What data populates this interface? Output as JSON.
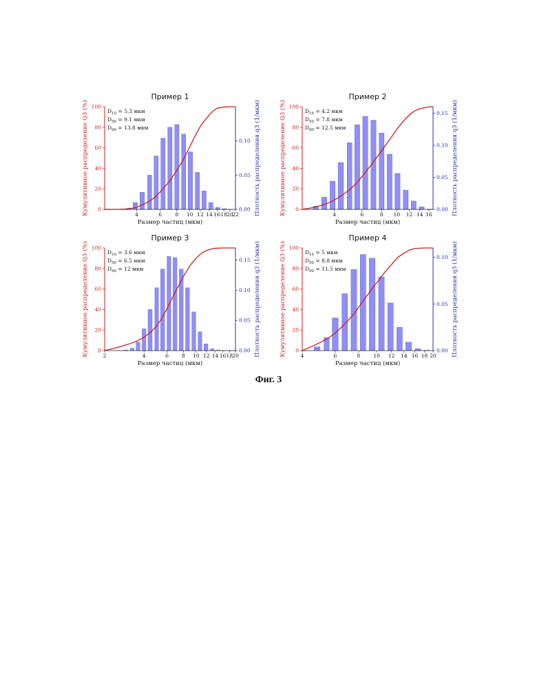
{
  "figure_caption": "Фиг. 3",
  "colors": {
    "cumulative": "#c81e1e",
    "density_bar": "#8f8ff5",
    "density_bar_stroke": "#5555d0",
    "density_axis": "#2b2ba8"
  },
  "chart_data": [
    {
      "type": "bar",
      "title": "Пример 1",
      "xlabel": "Размер частиц (мкм)",
      "ylabel_left": "Кумулятивное распределение Q3 (%)",
      "ylabel_right": "Плотность распределения q3 (1/мкм)",
      "stats": [
        {
          "pre": "D",
          "sub": "10",
          "post": " = 5.3 мкм"
        },
        {
          "pre": "D",
          "sub": "50",
          "post": " = 9.1 мкм"
        },
        {
          "pre": "D",
          "sub": "90",
          "post": " = 13.8 мкм"
        }
      ],
      "left_ticks": [
        "0",
        "20",
        "40",
        "60",
        "80",
        "100"
      ],
      "left_ylim": [
        0,
        100
      ],
      "right_ticks": [
        "0.00",
        "0.05",
        "0.10"
      ],
      "right_tick_values": [
        0,
        0.05,
        0.1
      ],
      "right_ylim": [
        0,
        0.15
      ],
      "x_tick_labels": [
        "4",
        "6",
        "8",
        "10",
        "12",
        "14",
        "16",
        "18",
        "20",
        "22"
      ],
      "x_tick_values": [
        4,
        6,
        8,
        10,
        12,
        14,
        16,
        18,
        20,
        22
      ],
      "x_scale": "log",
      "xlim": [
        2.3,
        22
      ],
      "bars": {
        "x": [
          3.5,
          3.9,
          4.4,
          5.0,
          5.6,
          6.3,
          7.1,
          8.0,
          9.0,
          10.1,
          11.4,
          12.8,
          14.4,
          16.2,
          18.2,
          20.5
        ],
        "values": [
          0.002,
          0.01,
          0.025,
          0.05,
          0.078,
          0.104,
          0.12,
          0.124,
          0.11,
          0.084,
          0.054,
          0.027,
          0.01,
          0.003,
          0.001,
          0.0003
        ]
      },
      "cumulative": {
        "x": [
          2.3,
          3.0,
          3.5,
          4.0,
          4.5,
          5.0,
          5.5,
          6.0,
          7.0,
          8.0,
          9.0,
          10.0,
          11.0,
          12.0,
          13.0,
          14.0,
          15.0,
          16.0,
          18.0,
          20.0,
          22.0
        ],
        "values": [
          0,
          0.1,
          0.5,
          2,
          5,
          8,
          12,
          17,
          27,
          38,
          49,
          61,
          72,
          81,
          87,
          92,
          96,
          98.5,
          99.7,
          100,
          100
        ]
      }
    },
    {
      "type": "bar",
      "title": "Пример 2",
      "xlabel": "Размер частиц (мкм)",
      "ylabel_left": "Кумулятивное распределение Q3 (%)",
      "ylabel_right": "Плотность распределения q3 (1/мкм)",
      "stats": [
        {
          "pre": "D",
          "sub": "10",
          "post": " = 4.2 мкм"
        },
        {
          "pre": "D",
          "sub": "50",
          "post": " = 7.8 мкм"
        },
        {
          "pre": "D",
          "sub": "90",
          "post": " = 12.5 мкм"
        }
      ],
      "left_ticks": [
        "0",
        "20",
        "40",
        "60",
        "80",
        "100"
      ],
      "left_ylim": [
        0,
        100
      ],
      "right_ticks": [
        "0.00",
        "0.05",
        "0.10",
        "0.15"
      ],
      "right_tick_values": [
        0,
        0.05,
        0.1,
        0.15
      ],
      "right_ylim": [
        0,
        0.16
      ],
      "x_tick_labels": [
        "4",
        "6",
        "8",
        "10",
        "12",
        "14",
        "16"
      ],
      "x_tick_values": [
        4,
        6,
        8,
        10,
        12,
        14,
        16
      ],
      "x_scale": "log",
      "xlim": [
        2.5,
        17
      ],
      "bars": {
        "x": [
          3.05,
          3.45,
          3.9,
          4.4,
          5.0,
          5.6,
          6.3,
          7.1,
          8.0,
          9.0,
          10.1,
          11.4,
          12.8,
          14.4,
          16.2
        ],
        "values": [
          0.005,
          0.019,
          0.044,
          0.073,
          0.104,
          0.132,
          0.145,
          0.139,
          0.119,
          0.086,
          0.056,
          0.03,
          0.013,
          0.004,
          0.0005
        ]
      },
      "cumulative": {
        "x": [
          2.5,
          3.0,
          3.5,
          4.0,
          4.5,
          5.0,
          5.5,
          6.0,
          7.0,
          8.0,
          9.0,
          10.0,
          11.0,
          12.0,
          13.0,
          14.0,
          15.0,
          16.0,
          17.0
        ],
        "values": [
          0,
          2,
          5,
          9,
          14,
          19,
          25,
          32,
          45,
          57,
          68,
          78,
          86,
          92,
          96,
          98,
          99,
          100,
          100
        ]
      }
    },
    {
      "type": "bar",
      "title": "Пример 3",
      "xlabel": "Размер частиц (мкм)",
      "ylabel_left": "Кумулятивное распределение Q3 (%)",
      "ylabel_right": "Плотность распределения q3 (1/мкм)",
      "stats": [
        {
          "pre": "D",
          "sub": "10",
          "post": " = 3.6 мкм"
        },
        {
          "pre": "D",
          "sub": "50",
          "post": " = 6.5 мкм"
        },
        {
          "pre": "D",
          "sub": "90",
          "post": " = 12 мкм"
        }
      ],
      "left_ticks": [
        "0",
        "20",
        "40",
        "60",
        "80",
        "100"
      ],
      "left_ylim": [
        0,
        100
      ],
      "right_ticks": [
        "0.00",
        "0.05",
        "0.10",
        "0.15"
      ],
      "right_tick_values": [
        0,
        0.05,
        0.1,
        0.15
      ],
      "right_ylim": [
        0,
        0.17
      ],
      "x_tick_labels": [
        "2",
        "4",
        "6",
        "8",
        "10",
        "12",
        "14",
        "16",
        "18",
        "20"
      ],
      "x_tick_values": [
        2,
        4,
        6,
        8,
        10,
        12,
        14,
        16,
        18,
        20
      ],
      "x_scale": "log",
      "xlim": [
        2,
        20
      ],
      "bars": {
        "x": [
          2.9,
          3.25,
          3.6,
          4.0,
          4.45,
          5.0,
          5.55,
          6.2,
          6.9,
          7.7,
          8.6,
          9.6,
          10.7,
          11.9,
          13.3,
          14.8,
          16.5,
          18.4
        ],
        "values": [
          0.001,
          0.004,
          0.014,
          0.036,
          0.068,
          0.104,
          0.135,
          0.156,
          0.154,
          0.135,
          0.104,
          0.064,
          0.031,
          0.011,
          0.003,
          0.001,
          0.0003,
          0.0001
        ]
      },
      "cumulative": {
        "x": [
          2.0,
          2.5,
          3.0,
          3.5,
          4.0,
          4.5,
          5.0,
          5.5,
          6.0,
          6.5,
          7.0,
          8.0,
          9.0,
          10.0,
          11.0,
          12.0,
          13.0,
          14.0,
          16.0,
          18.0,
          20.0
        ],
        "values": [
          0,
          3,
          6,
          9,
          13,
          18,
          24,
          32,
          41,
          50,
          58,
          72,
          83,
          90,
          95,
          97.5,
          99,
          99.7,
          100,
          100,
          100
        ]
      }
    },
    {
      "type": "bar",
      "title": "Пример 4",
      "xlabel": "Размер частиц (мкм)",
      "ylabel_left": "Кумулятивное распределение Q3 (%)",
      "ylabel_right": "Плотность распределения q3 (1/мкм)",
      "stats": [
        {
          "pre": "D",
          "sub": "10",
          "post": " = 5 мкм"
        },
        {
          "pre": "D",
          "sub": "50",
          "post": " = 8.8 мкм"
        },
        {
          "pre": "D",
          "sub": "90",
          "post": " = 11.5 мкм"
        }
      ],
      "left_ticks": [
        "0",
        "20",
        "40",
        "60",
        "80",
        "100"
      ],
      "left_ylim": [
        0,
        100
      ],
      "right_ticks": [
        "0.00",
        "0.05",
        "0.10"
      ],
      "right_tick_values": [
        0,
        0.05,
        0.1
      ],
      "right_ylim": [
        0,
        0.11
      ],
      "x_tick_labels": [
        "4",
        "6",
        "8",
        "10",
        "12",
        "14",
        "16",
        "18",
        "20"
      ],
      "x_tick_values": [
        4,
        6,
        8,
        10,
        12,
        14,
        16,
        18,
        20
      ],
      "x_scale": "log",
      "xlim": [
        4,
        20
      ],
      "bars": {
        "x": [
          4.8,
          5.4,
          6.0,
          6.75,
          7.55,
          8.45,
          9.45,
          10.6,
          11.85,
          13.25,
          14.8,
          16.6,
          18.5
        ],
        "values": [
          0.004,
          0.014,
          0.035,
          0.061,
          0.087,
          0.103,
          0.099,
          0.079,
          0.051,
          0.025,
          0.009,
          0.002,
          0.0004
        ]
      },
      "cumulative": {
        "x": [
          4.0,
          4.5,
          5.0,
          5.5,
          6.0,
          6.5,
          7.0,
          7.5,
          8.0,
          8.5,
          9.0,
          9.5,
          10.0,
          11.0,
          12.0,
          13.0,
          14.0,
          15.0,
          16.0,
          18.0,
          20.0
        ],
        "values": [
          0,
          4,
          8,
          12,
          17,
          23,
          29,
          35,
          42,
          49,
          55,
          61,
          66,
          76,
          84,
          91,
          95,
          98,
          99.5,
          100,
          100
        ]
      }
    }
  ]
}
